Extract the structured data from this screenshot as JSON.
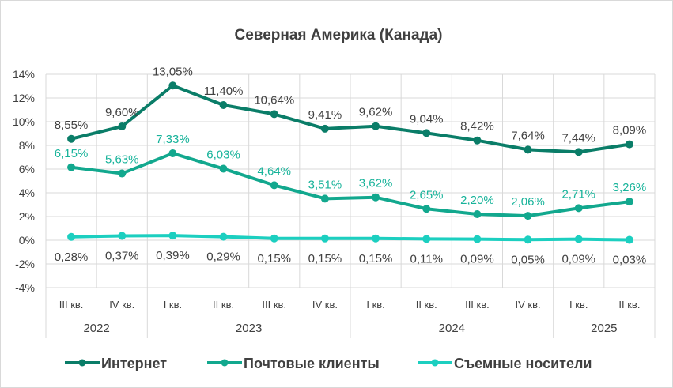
{
  "chart_data": {
    "type": "line",
    "title": "Северная Америка (Канада)",
    "categories": [
      "III кв.",
      "IV кв.",
      "I кв.",
      "II кв.",
      "III кв.",
      "IV кв.",
      "I кв.",
      "II кв.",
      "III кв.",
      "IV кв.",
      "I кв.",
      "II кв."
    ],
    "years": [
      {
        "label": "2022",
        "count": 2
      },
      {
        "label": "2023",
        "count": 4
      },
      {
        "label": "2024",
        "count": 4
      },
      {
        "label": "2025",
        "count": 2
      }
    ],
    "ylim": [
      -4,
      14
    ],
    "yticks": [
      -4,
      -2,
      0,
      2,
      4,
      6,
      8,
      10,
      12,
      14
    ],
    "ytick_labels": [
      "-4%",
      "-2%",
      "0%",
      "2%",
      "4%",
      "6%",
      "8%",
      "10%",
      "12%",
      "14%"
    ],
    "grid": true,
    "legend": "bottom",
    "series": [
      {
        "name": "Интернет",
        "color": "#0a7d68",
        "label_color": "#404040",
        "label_pos": "above",
        "values": [
          8.55,
          9.6,
          13.05,
          11.4,
          10.64,
          9.41,
          9.62,
          9.04,
          8.42,
          7.64,
          7.44,
          8.09
        ],
        "labels": [
          "8,55%",
          "9,60%",
          "13,05%",
          "11,40%",
          "10,64%",
          "9,41%",
          "9,62%",
          "9,04%",
          "8,42%",
          "7,64%",
          "7,44%",
          "8,09%"
        ]
      },
      {
        "name": "Почтовые клиенты",
        "color": "#12a88e",
        "label_color": "#17b39a",
        "label_pos": "above",
        "values": [
          6.15,
          5.63,
          7.33,
          6.03,
          4.64,
          3.51,
          3.62,
          2.65,
          2.2,
          2.06,
          2.71,
          3.26
        ],
        "labels": [
          "6,15%",
          "5,63%",
          "7,33%",
          "6,03%",
          "4,64%",
          "3,51%",
          "3,62%",
          "2,65%",
          "2,20%",
          "2,06%",
          "2,71%",
          "3,26%"
        ]
      },
      {
        "name": "Съемные носители",
        "color": "#1ccfc0",
        "label_color": "#404040",
        "label_pos": "below",
        "values": [
          0.28,
          0.37,
          0.39,
          0.29,
          0.15,
          0.15,
          0.15,
          0.11,
          0.09,
          0.05,
          0.09,
          0.03
        ],
        "labels": [
          "0,28%",
          "0,37%",
          "0,39%",
          "0,29%",
          "0,15%",
          "0,15%",
          "0,15%",
          "0,11%",
          "0,09%",
          "0,05%",
          "0,09%",
          "0,03%"
        ]
      }
    ]
  }
}
